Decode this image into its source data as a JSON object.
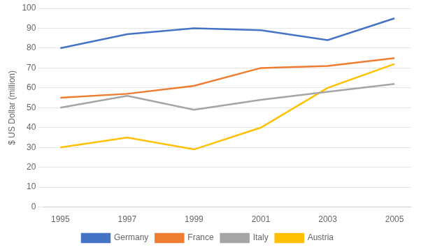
{
  "chart_data": {
    "type": "line",
    "x": [
      1995,
      1997,
      1999,
      2001,
      2003,
      2005
    ],
    "series": [
      {
        "name": "Germany",
        "color": "#4472C4",
        "values": [
          80,
          87,
          90,
          89,
          84,
          95
        ]
      },
      {
        "name": "France",
        "color": "#ED7D31",
        "values": [
          55,
          57,
          61,
          70,
          71,
          75
        ]
      },
      {
        "name": "Italy",
        "color": "#A5A5A5",
        "values": [
          50,
          56,
          49,
          54,
          58,
          62
        ]
      },
      {
        "name": "Austria",
        "color": "#FFC000",
        "values": [
          30,
          35,
          29,
          40,
          60,
          72
        ]
      }
    ],
    "ylabel": "$ US Dollar (million)",
    "xlim": [
      1994.5,
      2005.5
    ],
    "ylim": [
      0,
      100
    ],
    "xticks": [
      1995,
      1997,
      1999,
      2001,
      2003,
      2005
    ],
    "yticks": [
      0,
      10,
      20,
      30,
      40,
      50,
      60,
      70,
      80,
      90,
      100
    ],
    "grid": true,
    "legend": "bottom",
    "marker": "none"
  }
}
